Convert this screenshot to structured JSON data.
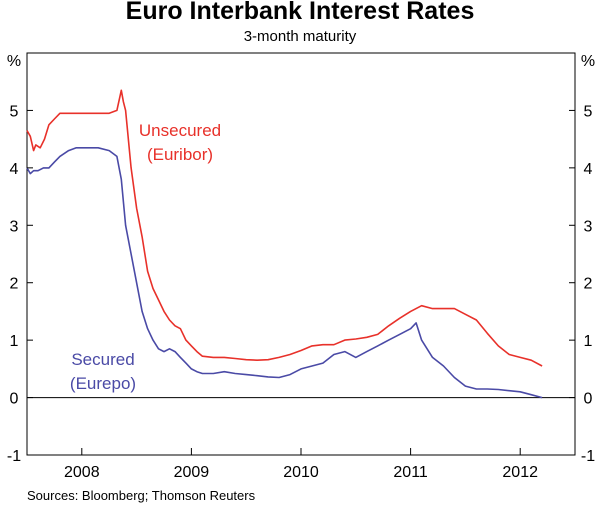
{
  "chart_data": {
    "type": "line",
    "title": "Euro Interbank Interest Rates",
    "subtitle": "3-month maturity",
    "ylabel_left": "%",
    "ylabel_right": "%",
    "ylim": [
      -1,
      6
    ],
    "yticks": [
      -1,
      0,
      1,
      2,
      3,
      4,
      5
    ],
    "xlim": [
      2007.5,
      2012.5
    ],
    "xticks": [
      {
        "label": "2008",
        "value": 2008
      },
      {
        "label": "2009",
        "value": 2009
      },
      {
        "label": "2010",
        "value": 2010
      },
      {
        "label": "2011",
        "value": 2011
      },
      {
        "label": "2012",
        "value": 2012
      }
    ],
    "year_boundaries": [
      2008,
      2009,
      2010,
      2011,
      2012
    ],
    "source": "Sources: Bloomberg; Thomson Reuters",
    "series": [
      {
        "name": "Unsecured",
        "sublabel": "(Euribor)",
        "color": "#e8312a",
        "x": [
          2007.5,
          2007.53,
          2007.56,
          2007.58,
          2007.62,
          2007.66,
          2007.7,
          2007.75,
          2007.8,
          2007.88,
          2007.95,
          2008.05,
          2008.15,
          2008.25,
          2008.32,
          2008.36,
          2008.38,
          2008.4,
          2008.45,
          2008.5,
          2008.55,
          2008.6,
          2008.65,
          2008.7,
          2008.75,
          2008.8,
          2008.85,
          2008.9,
          2008.95,
          2009.0,
          2009.05,
          2009.1,
          2009.2,
          2009.3,
          2009.4,
          2009.5,
          2009.6,
          2009.7,
          2009.8,
          2009.9,
          2010.0,
          2010.1,
          2010.2,
          2010.3,
          2010.4,
          2010.5,
          2010.6,
          2010.7,
          2010.8,
          2010.9,
          2011.0,
          2011.1,
          2011.2,
          2011.3,
          2011.4,
          2011.5,
          2011.6,
          2011.7,
          2011.8,
          2011.9,
          2012.0,
          2012.1,
          2012.2
        ],
        "values": [
          4.65,
          4.55,
          4.3,
          4.4,
          4.35,
          4.5,
          4.75,
          4.85,
          4.95,
          4.95,
          4.95,
          4.95,
          4.95,
          4.95,
          5.0,
          5.35,
          5.15,
          5.0,
          4.0,
          3.3,
          2.8,
          2.2,
          1.9,
          1.7,
          1.5,
          1.35,
          1.25,
          1.2,
          1.0,
          0.9,
          0.8,
          0.72,
          0.7,
          0.7,
          0.68,
          0.66,
          0.65,
          0.66,
          0.7,
          0.75,
          0.82,
          0.9,
          0.92,
          0.92,
          1.0,
          1.02,
          1.05,
          1.1,
          1.25,
          1.38,
          1.5,
          1.6,
          1.55,
          1.55,
          1.55,
          1.45,
          1.35,
          1.12,
          0.9,
          0.75,
          0.7,
          0.65,
          0.55
        ]
      },
      {
        "name": "Secured",
        "sublabel": "(Eurepo)",
        "color": "#4a4aa6",
        "x": [
          2007.5,
          2007.53,
          2007.56,
          2007.6,
          2007.65,
          2007.7,
          2007.75,
          2007.8,
          2007.88,
          2007.95,
          2008.05,
          2008.15,
          2008.25,
          2008.32,
          2008.36,
          2008.4,
          2008.45,
          2008.5,
          2008.55,
          2008.6,
          2008.65,
          2008.7,
          2008.75,
          2008.8,
          2008.85,
          2008.9,
          2008.95,
          2009.0,
          2009.05,
          2009.1,
          2009.2,
          2009.3,
          2009.4,
          2009.5,
          2009.6,
          2009.7,
          2009.8,
          2009.9,
          2010.0,
          2010.1,
          2010.2,
          2010.3,
          2010.4,
          2010.5,
          2010.6,
          2010.7,
          2010.8,
          2010.9,
          2011.0,
          2011.05,
          2011.1,
          2011.2,
          2011.3,
          2011.4,
          2011.5,
          2011.6,
          2011.7,
          2011.8,
          2011.9,
          2012.0,
          2012.1,
          2012.2
        ],
        "values": [
          4.0,
          3.9,
          3.95,
          3.95,
          4.0,
          4.0,
          4.1,
          4.2,
          4.3,
          4.35,
          4.35,
          4.35,
          4.3,
          4.2,
          3.8,
          3.0,
          2.5,
          2.0,
          1.5,
          1.2,
          1.0,
          0.85,
          0.8,
          0.85,
          0.8,
          0.7,
          0.6,
          0.5,
          0.45,
          0.42,
          0.42,
          0.45,
          0.42,
          0.4,
          0.38,
          0.36,
          0.35,
          0.4,
          0.5,
          0.55,
          0.6,
          0.75,
          0.8,
          0.7,
          0.8,
          0.9,
          1.0,
          1.1,
          1.2,
          1.3,
          1.0,
          0.7,
          0.55,
          0.35,
          0.2,
          0.15,
          0.15,
          0.14,
          0.12,
          0.1,
          0.05,
          0.0
        ]
      }
    ]
  }
}
